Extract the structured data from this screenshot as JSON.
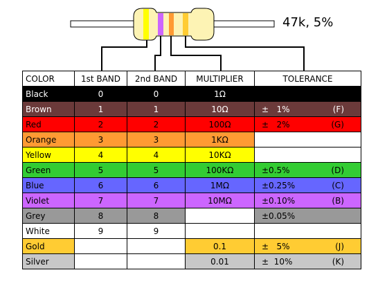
{
  "resistor_label": "47k, 5%",
  "headers": [
    "COLOR",
    "1st BAND",
    "2nd BAND",
    "MULTIPLIER",
    "TOLERANCE"
  ],
  "rows": [
    {
      "color": "Black",
      "first": "0",
      "second": "0",
      "multiplier": "1Ω",
      "tolerance": "",
      "tol_code": "",
      "bg": "#000000",
      "fg": "#ffffff"
    },
    {
      "color": "Brown",
      "first": "1",
      "second": "1",
      "multiplier": "10Ω",
      "tolerance": "±   1%",
      "tol_code": "(F)",
      "bg": "#6b3a3a",
      "fg": "#ffffff"
    },
    {
      "color": "Red",
      "first": "2",
      "second": "2",
      "multiplier": "100Ω",
      "tolerance": "±   2%",
      "tol_code": "(G)",
      "bg": "#ff0000",
      "fg": "#000000"
    },
    {
      "color": "Orange",
      "first": "3",
      "second": "3",
      "multiplier": "1KΩ",
      "tolerance": "",
      "tol_code": "",
      "bg": "#ff9a33",
      "fg": "#000000"
    },
    {
      "color": "Yellow",
      "first": "4",
      "second": "4",
      "multiplier": "10KΩ",
      "tolerance": "",
      "tol_code": "",
      "bg": "#ffff00",
      "fg": "#000000"
    },
    {
      "color": "Green",
      "first": "5",
      "second": "5",
      "multiplier": "100KΩ",
      "tolerance": "±0.5%",
      "tol_code": "(D)",
      "bg": "#33cc33",
      "fg": "#000000"
    },
    {
      "color": "Blue",
      "first": "6",
      "second": "6",
      "multiplier": "1MΩ",
      "tolerance": "±0.25%",
      "tol_code": "(C)",
      "bg": "#6666ff",
      "fg": "#000000"
    },
    {
      "color": "Violet",
      "first": "7",
      "second": "7",
      "multiplier": "10MΩ",
      "tolerance": "±0.10%",
      "tol_code": "(B)",
      "bg": "#cc66ff",
      "fg": "#000000"
    },
    {
      "color": "Grey",
      "first": "8",
      "second": "8",
      "multiplier": "",
      "tolerance": "±0.05%",
      "tol_code": "",
      "bg": "#999999",
      "fg": "#000000"
    },
    {
      "color": "White",
      "first": "9",
      "second": "9",
      "multiplier": "",
      "tolerance": "",
      "tol_code": "",
      "bg": "#ffffff",
      "fg": "#000000"
    },
    {
      "color": "Gold",
      "first": "",
      "second": "",
      "multiplier": "0.1",
      "tolerance": "±   5%",
      "tol_code": "(J)",
      "bg": "#ffcc33",
      "fg": "#000000"
    },
    {
      "color": "Silver",
      "first": "",
      "second": "",
      "multiplier": "0.01",
      "tolerance": "±  10%",
      "tol_code": "(K)",
      "bg": "#c8c8c8",
      "fg": "#000000"
    }
  ],
  "colors": {
    "body": "#fdf3b4",
    "lead": "#ffffff",
    "band1": "#ffff00",
    "band2": "#cc66ff",
    "band3": "#ff9a33",
    "band4": "#ffcc33"
  }
}
